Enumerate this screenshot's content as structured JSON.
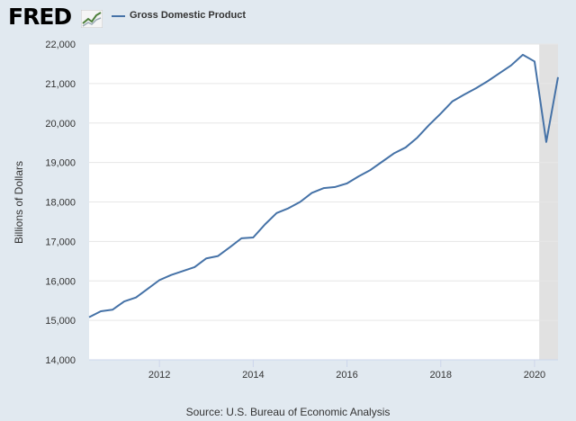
{
  "header": {
    "logo_text": "FRED",
    "logo_icon": "chart-line-icon",
    "legend_label": "Gross Domestic Product"
  },
  "colors": {
    "background": "#e1e9f0",
    "plot_background": "#ffffff",
    "series_line": "#4572a7",
    "recession_shade": "#e1e1e1",
    "grid": "#e6e6e6"
  },
  "chart_data": {
    "type": "line",
    "title": "",
    "xlabel": "",
    "ylabel": "Billions of Dollars",
    "xlim": [
      2010.5,
      2020.5
    ],
    "ylim": [
      14000,
      22000
    ],
    "x_ticks": [
      2012,
      2014,
      2016,
      2018,
      2020
    ],
    "y_ticks": [
      14000,
      15000,
      16000,
      17000,
      18000,
      19000,
      20000,
      21000,
      22000
    ],
    "y_tick_labels": [
      "14,000",
      "15,000",
      "16,000",
      "17,000",
      "18,000",
      "19,000",
      "20,000",
      "21,000",
      "22,000"
    ],
    "grid": "horizontal",
    "legend": "top-left",
    "recession_shading": [
      [
        2020.1,
        2020.5
      ]
    ],
    "series": [
      {
        "name": "Gross Domestic Product",
        "x": [
          2010.5,
          2010.75,
          2011.0,
          2011.25,
          2011.5,
          2011.75,
          2012.0,
          2012.25,
          2012.5,
          2012.75,
          2013.0,
          2013.25,
          2013.5,
          2013.75,
          2014.0,
          2014.25,
          2014.5,
          2014.75,
          2015.0,
          2015.25,
          2015.5,
          2015.75,
          2016.0,
          2016.25,
          2016.5,
          2016.75,
          2017.0,
          2017.25,
          2017.5,
          2017.75,
          2018.0,
          2018.25,
          2018.5,
          2018.75,
          2019.0,
          2019.25,
          2019.5,
          2019.75,
          2020.0,
          2020.25,
          2020.5
        ],
        "values": [
          15080,
          15230,
          15270,
          15480,
          15580,
          15800,
          16020,
          16150,
          16250,
          16350,
          16570,
          16630,
          16850,
          17080,
          17100,
          17430,
          17720,
          17840,
          18000,
          18230,
          18350,
          18380,
          18470,
          18650,
          18810,
          19020,
          19230,
          19380,
          19630,
          19950,
          20240,
          20550,
          20720,
          20880,
          21060,
          21260,
          21460,
          21730,
          21560,
          19520,
          21160
        ]
      }
    ]
  },
  "source": "Source: U.S. Bureau of Economic Analysis"
}
